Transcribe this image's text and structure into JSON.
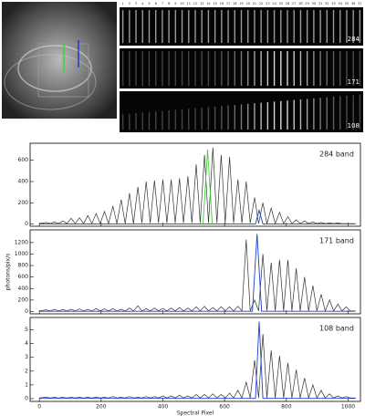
{
  "images": {
    "strip_numbers": [
      1,
      2,
      3,
      4,
      5,
      6,
      7,
      8,
      9,
      10,
      11,
      12,
      13,
      14,
      15,
      16,
      17,
      18,
      19,
      20,
      21,
      22,
      23,
      24,
      25,
      26,
      27,
      28,
      29,
      30,
      31,
      32,
      33,
      34,
      35,
      36,
      37
    ],
    "strip_labels": [
      "284",
      "171",
      "108"
    ]
  },
  "chart_data": [
    {
      "type": "line",
      "label": "284 band",
      "xlim": [
        -30,
        1040
      ],
      "xticks": [
        0,
        200,
        400,
        600,
        800,
        1000
      ],
      "ylim": [
        -20,
        760
      ],
      "yticks": [
        0,
        200,
        400,
        600
      ],
      "x": [
        0,
        22,
        35,
        49,
        62,
        76,
        89,
        103,
        116,
        130,
        143,
        157,
        170,
        184,
        197,
        211,
        224,
        238,
        251,
        265,
        278,
        292,
        305,
        319,
        332,
        346,
        359,
        373,
        386,
        400,
        413,
        427,
        440,
        454,
        467,
        481,
        494,
        508,
        521,
        535,
        548,
        562,
        575,
        589,
        602,
        616,
        629,
        643,
        656,
        670,
        683,
        697,
        710,
        724,
        737,
        751,
        764,
        778,
        791,
        805,
        818,
        832,
        845,
        859,
        872,
        886,
        899,
        913,
        926,
        940,
        953,
        967,
        980,
        994,
        1007,
        1024
      ],
      "series": [
        {
          "name": "black",
          "color": "#333333",
          "values": [
            5,
            15,
            5,
            20,
            5,
            30,
            5,
            55,
            5,
            60,
            5,
            80,
            5,
            100,
            5,
            120,
            5,
            170,
            5,
            230,
            5,
            290,
            5,
            350,
            10,
            400,
            10,
            410,
            10,
            420,
            10,
            420,
            10,
            430,
            10,
            450,
            10,
            560,
            10,
            650,
            10,
            720,
            10,
            650,
            10,
            630,
            10,
            420,
            10,
            400,
            10,
            250,
            5,
            200,
            5,
            150,
            5,
            110,
            5,
            70,
            5,
            40,
            5,
            30,
            5,
            20,
            5,
            15,
            5,
            10,
            5,
            10,
            5,
            5,
            5,
            5
          ]
        },
        {
          "name": "blue",
          "color": "#1a3fcf",
          "x": [
            0,
            700,
            712,
            724,
            1024
          ],
          "values": [
            2,
            2,
            130,
            2,
            2
          ]
        },
        {
          "name": "green",
          "color": "#3fd23f",
          "x": [
            530,
            545,
            560
          ],
          "values": [
            0,
            700,
            0
          ]
        }
      ]
    },
    {
      "type": "line",
      "label": "171 band",
      "ylabel": "photons/pix/s",
      "xlim": [
        -30,
        1040
      ],
      "xticks": [
        0,
        200,
        400,
        600,
        800,
        1000
      ],
      "ylim": [
        -40,
        1420
      ],
      "yticks": [
        0,
        200,
        400,
        600,
        800,
        1000,
        1200
      ],
      "x": [
        0,
        22,
        35,
        49,
        62,
        76,
        89,
        103,
        116,
        130,
        143,
        157,
        170,
        184,
        197,
        211,
        224,
        238,
        251,
        265,
        278,
        292,
        305,
        319,
        332,
        346,
        359,
        373,
        386,
        400,
        413,
        427,
        440,
        454,
        467,
        481,
        494,
        508,
        521,
        535,
        548,
        562,
        575,
        589,
        602,
        616,
        629,
        643,
        656,
        670,
        683,
        697,
        710,
        724,
        737,
        751,
        764,
        778,
        791,
        805,
        818,
        832,
        845,
        859,
        872,
        886,
        899,
        913,
        926,
        940,
        953,
        967,
        980,
        994,
        1007,
        1024
      ],
      "series": [
        {
          "name": "black",
          "color": "#333333",
          "values": [
            10,
            30,
            10,
            40,
            10,
            35,
            10,
            40,
            10,
            45,
            10,
            40,
            10,
            50,
            10,
            45,
            10,
            50,
            10,
            40,
            10,
            60,
            10,
            100,
            10,
            50,
            10,
            60,
            10,
            55,
            10,
            60,
            10,
            70,
            10,
            60,
            10,
            80,
            10,
            90,
            10,
            70,
            10,
            85,
            10,
            80,
            10,
            90,
            10,
            1250,
            10,
            200,
            10,
            1000,
            10,
            850,
            10,
            900,
            10,
            900,
            10,
            750,
            10,
            600,
            10,
            450,
            10,
            300,
            10,
            200,
            10,
            130,
            10,
            80,
            10,
            10
          ]
        },
        {
          "name": "blue",
          "color": "#1a3fcf",
          "x": [
            0,
            690,
            705,
            720,
            1024
          ],
          "values": [
            5,
            5,
            1350,
            5,
            5
          ]
        }
      ]
    },
    {
      "type": "line",
      "label": "108 band",
      "xlabel": "Spectral Pixel",
      "xlim": [
        -30,
        1040
      ],
      "xticks": [
        0,
        200,
        400,
        600,
        800,
        1000
      ],
      "ylim": [
        -0.2,
        5.9
      ],
      "yticks": [
        0,
        1,
        2,
        3,
        4,
        5
      ],
      "x": [
        0,
        22,
        35,
        49,
        62,
        76,
        89,
        103,
        116,
        130,
        143,
        157,
        170,
        184,
        197,
        211,
        224,
        238,
        251,
        265,
        278,
        292,
        305,
        319,
        332,
        346,
        359,
        373,
        386,
        400,
        413,
        427,
        440,
        454,
        467,
        481,
        494,
        508,
        521,
        535,
        548,
        562,
        575,
        589,
        602,
        616,
        629,
        643,
        656,
        670,
        683,
        697,
        710,
        724,
        737,
        751,
        764,
        778,
        791,
        805,
        818,
        832,
        845,
        859,
        872,
        886,
        899,
        913,
        926,
        940,
        953,
        967,
        980,
        994,
        1007,
        1024
      ],
      "series": [
        {
          "name": "black",
          "color": "#333333",
          "values": [
            0.05,
            0.1,
            0.05,
            0.1,
            0.05,
            0.1,
            0.05,
            0.1,
            0.05,
            0.1,
            0.05,
            0.1,
            0.05,
            0.1,
            0.05,
            0.1,
            0.05,
            0.15,
            0.05,
            0.1,
            0.05,
            0.15,
            0.05,
            0.1,
            0.05,
            0.15,
            0.05,
            0.15,
            0.05,
            0.2,
            0.05,
            0.2,
            0.05,
            0.25,
            0.05,
            0.2,
            0.05,
            0.3,
            0.05,
            0.3,
            0.05,
            0.35,
            0.05,
            0.3,
            0.05,
            0.4,
            0.05,
            0.6,
            0.05,
            1.2,
            0.05,
            2.8,
            0.05,
            4.7,
            0.05,
            3.5,
            0.05,
            3.1,
            0.05,
            2.6,
            0.05,
            2.1,
            0.05,
            1.5,
            0.05,
            1.0,
            0.05,
            0.6,
            0.05,
            0.35,
            0.05,
            0.2,
            0.05,
            0.15,
            0.05,
            0.05
          ]
        },
        {
          "name": "blue",
          "color": "#1a3fcf",
          "x": [
            0,
            700,
            712,
            724,
            1024
          ],
          "values": [
            0.02,
            0.02,
            5.6,
            0.02,
            0.02
          ]
        }
      ]
    }
  ]
}
